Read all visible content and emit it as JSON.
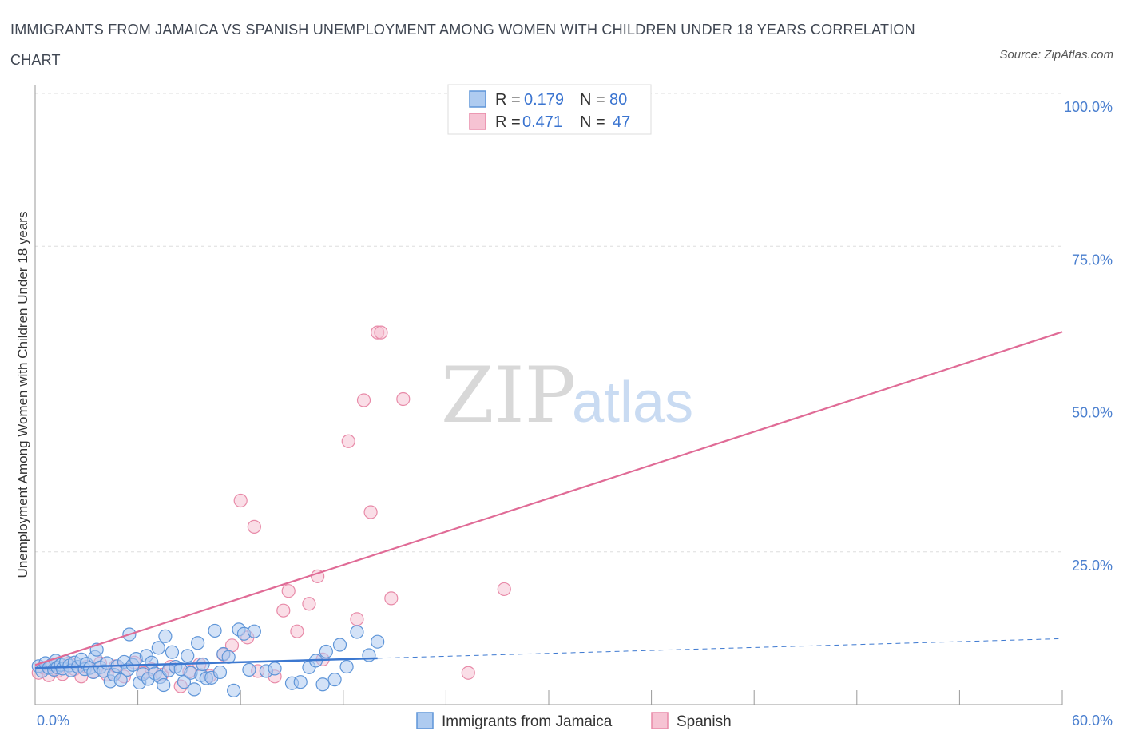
{
  "title": "IMMIGRANTS FROM JAMAICA VS SPANISH UNEMPLOYMENT AMONG WOMEN WITH CHILDREN UNDER 18 YEARS CORRELATION CHART",
  "source": "Source: ZipAtlas.com",
  "watermark": {
    "zip": "ZIP",
    "atlas": "atlas"
  },
  "legend": {
    "r_label": "R =",
    "n_label": "N =",
    "rows": [
      {
        "r": "0.179",
        "n": "80"
      },
      {
        "r": "0.471",
        "n": "47"
      }
    ]
  },
  "colors": {
    "blue_fill": "#aecbf0",
    "blue_stroke": "#5e95d8",
    "blue_line": "#3c78d0",
    "pink_fill": "#f6c3d3",
    "pink_stroke": "#e88aa8",
    "pink_line": "#e06b96",
    "grid": "#dddddd",
    "axis": "#999999"
  },
  "chart_data": {
    "type": "scatter",
    "xlabel": "",
    "ylabel": "Unemployment Among Women with Children Under 18 years",
    "xlim": [
      0,
      60
    ],
    "ylim": [
      0,
      100
    ],
    "x_tick_labels": [
      "0.0%",
      "60.0%"
    ],
    "y_ticks": [
      25,
      50,
      75,
      100
    ],
    "y_tick_labels": [
      "25.0%",
      "50.0%",
      "75.0%",
      "100.0%"
    ],
    "grid": true,
    "legend_position": "top-center",
    "series": [
      {
        "name": "Immigrants from Jamaica",
        "color": "#5e95d8",
        "trend": {
          "x0": 0,
          "y0": 6.0,
          "x1": 20,
          "y1": 7.6,
          "dash_to_x": 60,
          "dash_to_y": 10.8
        },
        "points": [
          [
            0.2,
            6.3
          ],
          [
            0.4,
            5.5
          ],
          [
            0.6,
            6.8
          ],
          [
            0.8,
            6.0
          ],
          [
            1.0,
            6.6
          ],
          [
            1.1,
            5.7
          ],
          [
            1.2,
            7.2
          ],
          [
            1.3,
            6.1
          ],
          [
            1.5,
            6.5
          ],
          [
            1.6,
            5.9
          ],
          [
            1.8,
            7.0
          ],
          [
            2.0,
            6.4
          ],
          [
            2.1,
            5.6
          ],
          [
            2.3,
            6.9
          ],
          [
            2.5,
            6.2
          ],
          [
            2.7,
            7.4
          ],
          [
            2.9,
            5.8
          ],
          [
            3.0,
            6.7
          ],
          [
            3.2,
            6.0
          ],
          [
            3.4,
            5.3
          ],
          [
            3.5,
            7.8
          ],
          [
            3.6,
            9.0
          ],
          [
            3.8,
            6.1
          ],
          [
            4.0,
            5.5
          ],
          [
            4.2,
            6.8
          ],
          [
            4.4,
            3.8
          ],
          [
            4.6,
            4.9
          ],
          [
            4.8,
            6.3
          ],
          [
            5.0,
            4.0
          ],
          [
            5.2,
            7.0
          ],
          [
            5.4,
            5.7
          ],
          [
            5.5,
            11.5
          ],
          [
            5.7,
            6.5
          ],
          [
            5.9,
            7.5
          ],
          [
            6.1,
            3.6
          ],
          [
            6.3,
            5.0
          ],
          [
            6.5,
            8.0
          ],
          [
            6.6,
            4.2
          ],
          [
            6.8,
            6.9
          ],
          [
            7.0,
            5.1
          ],
          [
            7.2,
            9.3
          ],
          [
            7.3,
            4.5
          ],
          [
            7.5,
            3.2
          ],
          [
            7.6,
            11.2
          ],
          [
            7.8,
            5.6
          ],
          [
            8.0,
            8.6
          ],
          [
            8.2,
            6.2
          ],
          [
            8.5,
            5.8
          ],
          [
            8.7,
            3.7
          ],
          [
            8.9,
            8.0
          ],
          [
            9.1,
            5.2
          ],
          [
            9.3,
            2.5
          ],
          [
            9.5,
            10.1
          ],
          [
            9.7,
            4.8
          ],
          [
            9.8,
            6.6
          ],
          [
            10.0,
            4.3
          ],
          [
            10.3,
            4.4
          ],
          [
            10.5,
            12.1
          ],
          [
            10.8,
            5.3
          ],
          [
            11.0,
            8.3
          ],
          [
            11.3,
            7.8
          ],
          [
            11.6,
            2.3
          ],
          [
            11.9,
            12.3
          ],
          [
            12.2,
            11.6
          ],
          [
            12.5,
            5.7
          ],
          [
            12.8,
            12.0
          ],
          [
            13.5,
            5.5
          ],
          [
            14.0,
            5.9
          ],
          [
            15.0,
            3.5
          ],
          [
            15.5,
            3.7
          ],
          [
            16.0,
            6.1
          ],
          [
            16.4,
            7.2
          ],
          [
            16.8,
            3.3
          ],
          [
            17.0,
            8.7
          ],
          [
            17.5,
            4.1
          ],
          [
            17.8,
            9.8
          ],
          [
            18.2,
            6.2
          ],
          [
            18.8,
            11.9
          ],
          [
            19.5,
            8.1
          ],
          [
            20.0,
            10.3
          ]
        ]
      },
      {
        "name": "Spanish",
        "color": "#e88aa8",
        "trend": {
          "x0": 0,
          "y0": 6.5,
          "x1": 60,
          "y1": 61.0
        },
        "points": [
          [
            0.2,
            5.2
          ],
          [
            0.5,
            6.0
          ],
          [
            0.8,
            4.8
          ],
          [
            1.0,
            6.4
          ],
          [
            1.3,
            5.5
          ],
          [
            1.6,
            5.0
          ],
          [
            2.0,
            6.8
          ],
          [
            2.3,
            5.8
          ],
          [
            2.7,
            4.6
          ],
          [
            3.0,
            6.2
          ],
          [
            3.4,
            5.4
          ],
          [
            3.8,
            6.8
          ],
          [
            4.2,
            4.9
          ],
          [
            4.7,
            6.3
          ],
          [
            5.2,
            4.6
          ],
          [
            5.8,
            6.9
          ],
          [
            6.3,
            5.2
          ],
          [
            6.8,
            5.8
          ],
          [
            7.4,
            4.9
          ],
          [
            7.9,
            6.2
          ],
          [
            8.5,
            3.0
          ],
          [
            9.0,
            5.4
          ],
          [
            9.6,
            6.6
          ],
          [
            10.2,
            4.7
          ],
          [
            11.0,
            8.2
          ],
          [
            11.5,
            9.7
          ],
          [
            12.0,
            33.4
          ],
          [
            12.4,
            11.0
          ],
          [
            12.8,
            29.1
          ],
          [
            13.0,
            5.5
          ],
          [
            14.0,
            4.6
          ],
          [
            14.5,
            15.4
          ],
          [
            14.8,
            18.6
          ],
          [
            15.3,
            12.0
          ],
          [
            16.0,
            16.5
          ],
          [
            16.5,
            21.0
          ],
          [
            16.8,
            7.4
          ],
          [
            18.3,
            43.1
          ],
          [
            18.8,
            14.0
          ],
          [
            19.2,
            49.8
          ],
          [
            19.6,
            31.5
          ],
          [
            20.0,
            60.9
          ],
          [
            20.2,
            60.9
          ],
          [
            20.8,
            17.4
          ],
          [
            21.5,
            50.0
          ],
          [
            25.3,
            5.2
          ],
          [
            27.4,
            18.9
          ]
        ]
      }
    ]
  }
}
